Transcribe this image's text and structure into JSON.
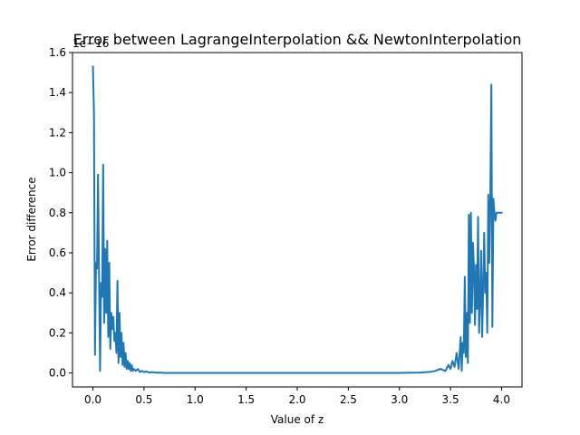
{
  "chart_data": {
    "type": "line",
    "title": "Error between LagrangeInterpolation && NewtonInterpolation",
    "xlabel": "Value of z",
    "ylabel": "Error difference",
    "offset_text": "1e−16",
    "xlim": [
      -0.2,
      4.2
    ],
    "ylim": [
      -0.07,
      1.6
    ],
    "x_ticks": [
      0.0,
      0.5,
      1.0,
      1.5,
      2.0,
      2.5,
      3.0,
      3.5,
      4.0
    ],
    "x_tick_labels": [
      "0.0",
      "0.5",
      "1.0",
      "1.5",
      "2.0",
      "2.5",
      "3.0",
      "3.5",
      "4.0"
    ],
    "y_ticks": [
      0.0,
      0.2,
      0.4,
      0.6,
      0.8,
      1.0,
      1.2,
      1.4,
      1.6
    ],
    "y_tick_labels": [
      "0.0",
      "0.2",
      "0.4",
      "0.6",
      "0.8",
      "1.0",
      "1.2",
      "1.4",
      "1.6"
    ],
    "grid": false,
    "legend": "none",
    "line_color": "#1f77b4",
    "series": [
      {
        "x": [
          0.0,
          0.01,
          0.02,
          0.03,
          0.04,
          0.05,
          0.06,
          0.07,
          0.08,
          0.09,
          0.1,
          0.11,
          0.12,
          0.13,
          0.14,
          0.15,
          0.16,
          0.17,
          0.18,
          0.19,
          0.2,
          0.21,
          0.22,
          0.23,
          0.24,
          0.25,
          0.26,
          0.27,
          0.28,
          0.29,
          0.3,
          0.31,
          0.32,
          0.33,
          0.34,
          0.35,
          0.36,
          0.37,
          0.38,
          0.39,
          0.4,
          0.42,
          0.44,
          0.46,
          0.48,
          0.5,
          0.52,
          0.55,
          0.58,
          0.62,
          0.66,
          0.7,
          0.8,
          1.0,
          1.5,
          2.0,
          2.5,
          3.0,
          3.2,
          3.3,
          3.35,
          3.4,
          3.45,
          3.48,
          3.5,
          3.52,
          3.54,
          3.56,
          3.58,
          3.6,
          3.61,
          3.62,
          3.63,
          3.64,
          3.65,
          3.66,
          3.67,
          3.68,
          3.69,
          3.7,
          3.71,
          3.72,
          3.73,
          3.74,
          3.75,
          3.76,
          3.77,
          3.78,
          3.79,
          3.8,
          3.81,
          3.82,
          3.83,
          3.84,
          3.85,
          3.86,
          3.87,
          3.88,
          3.89,
          3.9,
          3.91,
          3.92,
          3.93,
          3.94,
          3.95,
          3.96,
          3.97,
          3.98,
          3.99,
          4.0
        ],
        "y": [
          1.53,
          1.3,
          0.09,
          0.55,
          0.52,
          0.99,
          0.48,
          0.01,
          0.45,
          0.38,
          1.04,
          0.25,
          0.62,
          0.3,
          0.66,
          0.18,
          0.55,
          0.12,
          0.3,
          0.22,
          0.28,
          0.16,
          0.2,
          0.1,
          0.46,
          0.05,
          0.3,
          0.08,
          0.2,
          0.04,
          0.15,
          0.03,
          0.1,
          0.02,
          0.06,
          0.02,
          0.05,
          0.01,
          0.04,
          0.01,
          0.02,
          0.01,
          0.02,
          0.005,
          0.01,
          0.004,
          0.008,
          0.002,
          0.004,
          0.001,
          0.001,
          0.0,
          0.0,
          0.0,
          0.0,
          0.0,
          0.0,
          0.0,
          0.002,
          0.005,
          0.01,
          0.02,
          0.01,
          0.04,
          0.02,
          0.06,
          0.03,
          0.1,
          0.02,
          0.18,
          0.01,
          0.15,
          0.1,
          0.48,
          0.08,
          0.3,
          0.05,
          0.79,
          0.25,
          0.8,
          0.3,
          0.65,
          0.52,
          0.24,
          0.54,
          0.32,
          0.78,
          0.2,
          0.36,
          0.61,
          0.18,
          0.42,
          0.7,
          0.4,
          0.5,
          0.2,
          0.89,
          0.55,
          0.88,
          1.44,
          0.23,
          0.87,
          0.8,
          0.76,
          0.8,
          0.8,
          0.8,
          0.8,
          0.8,
          0.8
        ]
      }
    ]
  }
}
